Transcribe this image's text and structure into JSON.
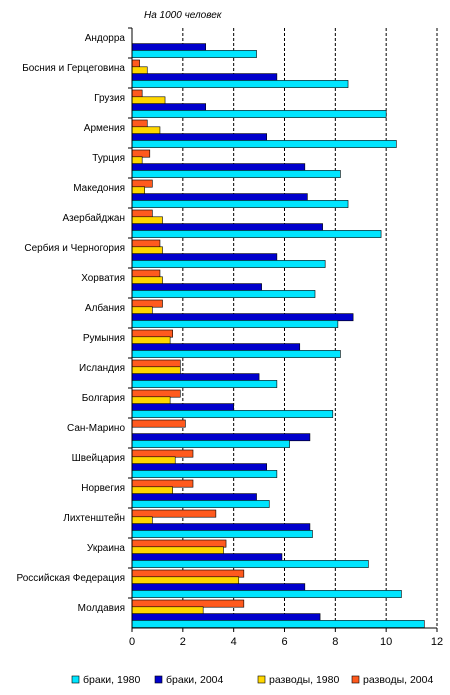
{
  "chart_data": {
    "type": "bar",
    "orientation": "horizontal",
    "unit_label": "На 1000 человек",
    "xlim": [
      0,
      12
    ],
    "x_ticks": [
      0,
      2,
      4,
      6,
      8,
      10,
      12
    ],
    "grid": "vertical dashed",
    "legend_position": "bottom",
    "categories": [
      "Андорра",
      "Босния и Герцеговина",
      "Грузия",
      "Армения",
      "Турция",
      "Македония",
      "Азербайджан",
      "Сербия и Черногория",
      "Хорватия",
      "Албания",
      "Румыния",
      "Исландия",
      "Болгария",
      "Сан-Марино",
      "Швейцария",
      "Норвегия",
      "Лихтенштейн",
      "Украина",
      "Российская Федерация",
      "Молдавия"
    ],
    "series": [
      {
        "name": "разводы, 2004",
        "color": "#ff5a1e",
        "values": [
          null,
          0.3,
          0.4,
          0.6,
          0.7,
          0.8,
          0.8,
          1.1,
          1.1,
          1.2,
          1.6,
          1.9,
          1.9,
          2.1,
          2.4,
          2.4,
          3.3,
          3.7,
          4.4,
          4.4
        ]
      },
      {
        "name": "разводы, 1980",
        "color": "#ffd700",
        "values": [
          null,
          0.6,
          1.3,
          1.1,
          0.4,
          0.5,
          1.2,
          1.2,
          1.2,
          0.8,
          1.5,
          1.9,
          1.5,
          null,
          1.7,
          1.6,
          0.8,
          3.6,
          4.2,
          2.8
        ]
      },
      {
        "name": "браки, 2004",
        "color": "#0000cc",
        "values": [
          2.9,
          5.7,
          2.9,
          5.3,
          6.8,
          6.9,
          7.5,
          5.7,
          5.1,
          8.7,
          6.6,
          5.0,
          4.0,
          7.0,
          5.3,
          4.9,
          7.0,
          5.9,
          6.8,
          7.4
        ]
      },
      {
        "name": "браки, 1980",
        "color": "#00e5ff",
        "values": [
          4.9,
          8.5,
          10.0,
          10.4,
          8.2,
          8.5,
          9.8,
          7.6,
          7.2,
          8.1,
          8.2,
          5.7,
          7.9,
          6.2,
          5.7,
          5.4,
          7.1,
          9.3,
          10.6,
          11.5
        ]
      }
    ]
  },
  "legend": {
    "items": [
      {
        "label": "браки, 1980",
        "color": "#00e5ff"
      },
      {
        "label": "браки, 2004",
        "color": "#0000cc"
      },
      {
        "label": "разводы, 1980",
        "color": "#ffd700"
      },
      {
        "label": "разводы, 2004",
        "color": "#ff5a1e"
      }
    ]
  }
}
